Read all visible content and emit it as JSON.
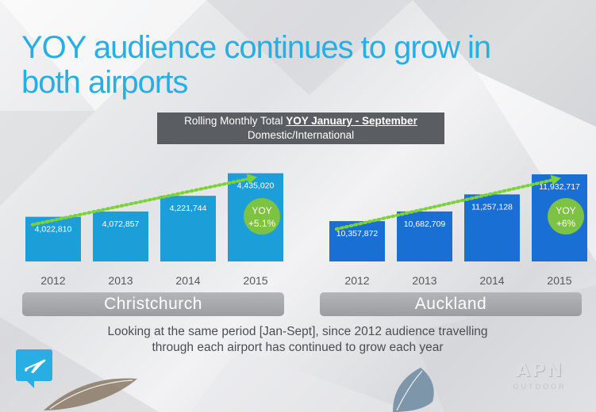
{
  "title": [
    "YOY audience continues to grow in",
    "both airports"
  ],
  "banner": {
    "line1_prefix": "Rolling Monthly Total",
    "line1_highlight": "YOY January - September",
    "line2": "Domestic/International"
  },
  "chart_data": [
    {
      "type": "bar",
      "categories": [
        "2012",
        "2013",
        "2014",
        "2015"
      ],
      "values": [
        4022810,
        4072857,
        4221744,
        4435020
      ],
      "value_labels": [
        "4,022,810",
        "4,072,857",
        "4,221,744",
        "4,435,020"
      ],
      "xlabel": "Christchurch",
      "ylim": [
        3600000,
        4500000
      ],
      "bar_color": "#1c9fd8",
      "trend_color": "#7dd23a",
      "yoy_badge": [
        "YOY",
        "+5.1%"
      ]
    },
    {
      "type": "bar",
      "categories": [
        "2012",
        "2013",
        "2014",
        "2015"
      ],
      "values": [
        10357872,
        10682709,
        11257128,
        11932717
      ],
      "value_labels": [
        "10,357,872",
        "10,682,709",
        "11,257,128",
        "11,932,717"
      ],
      "xlabel": "Auckland",
      "ylim": [
        9000000,
        12200000
      ],
      "bar_color": "#1a6fd4",
      "trend_color": "#7dd23a",
      "yoy_badge": [
        "YOY",
        "+6%"
      ]
    }
  ],
  "caption": [
    "Looking at the same period [Jan-Sept], since 2012 audience travelling",
    "through each airport  has continued to grow each year"
  ],
  "logo": {
    "big": "APN",
    "small": "OUTDOOR"
  },
  "icons": {
    "airport": "airplane-icon"
  }
}
